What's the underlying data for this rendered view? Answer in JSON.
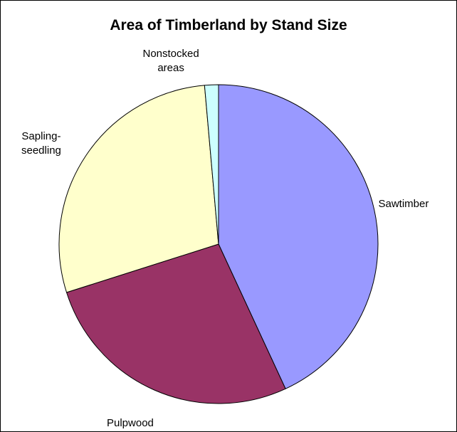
{
  "chart_data": {
    "type": "pie",
    "title": "Area of Timberland by Stand Size",
    "categories": [
      "Sawtimber",
      "Pulpwood",
      "Sapling-\nseedling",
      "Nonstocked\nareas"
    ],
    "values": [
      43.1,
      27.0,
      28.5,
      1.4
    ],
    "colors": [
      "#9999ff",
      "#993366",
      "#ffffcc",
      "#ccffff"
    ]
  }
}
